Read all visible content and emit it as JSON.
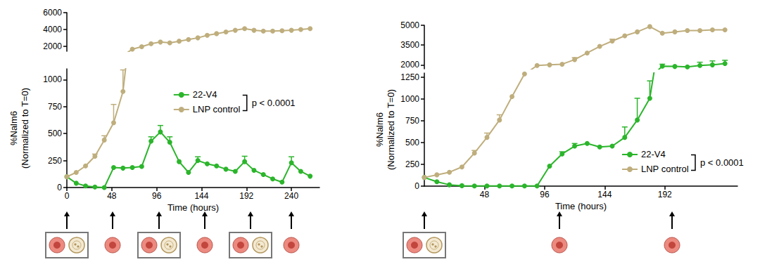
{
  "chart_data": [
    {
      "type": "line",
      "ylabel": "%Nalm6\n(Normalized to T=0)",
      "xlabel": "Time (hours)",
      "annotation": "p < 0.0001",
      "x": [
        0,
        10,
        20,
        30,
        40,
        50,
        60,
        70,
        80,
        90,
        100,
        110,
        120,
        130,
        140,
        150,
        160,
        170,
        180,
        190,
        200,
        210,
        220,
        230,
        240,
        250,
        260
      ],
      "xlim": [
        0,
        270
      ],
      "xticks": [
        0,
        48,
        96,
        144,
        192,
        240
      ],
      "ylim": [
        0,
        6000
      ],
      "yticks": [
        0,
        250,
        500,
        750,
        1000,
        2000,
        4000,
        6000
      ],
      "y_break": [
        1100,
        1400
      ],
      "grid": false,
      "legend": "center",
      "marker": "circle",
      "series": [
        {
          "name": "22-V4",
          "color": "#2bb52b",
          "values": [
            100,
            40,
            15,
            5,
            0,
            185,
            180,
            185,
            195,
            430,
            515,
            420,
            240,
            140,
            250,
            220,
            200,
            170,
            150,
            240,
            160,
            120,
            80,
            50,
            230,
            150,
            105
          ],
          "errors": [
            null,
            null,
            null,
            null,
            null,
            null,
            null,
            null,
            null,
            40,
            60,
            50,
            null,
            null,
            35,
            null,
            null,
            null,
            null,
            50,
            null,
            null,
            null,
            null,
            55,
            null,
            null
          ]
        },
        {
          "name": "LNP control",
          "color": "#bfae7d",
          "values": [
            100,
            140,
            200,
            290,
            440,
            600,
            890,
            1650,
            1950,
            2300,
            2500,
            2400,
            2600,
            2800,
            3000,
            3300,
            3500,
            3700,
            3900,
            4100,
            3900,
            3800,
            3800,
            3850,
            3900,
            4000,
            4100
          ],
          "errors": [
            null,
            null,
            null,
            20,
            40,
            170,
            200,
            null,
            null,
            null,
            null,
            null,
            null,
            null,
            null,
            null,
            null,
            null,
            null,
            null,
            null,
            null,
            null,
            null,
            null,
            null,
            null
          ]
        }
      ]
    },
    {
      "type": "line",
      "ylabel": "%Nalm6\n(Normalized to T=0)",
      "xlabel": "Time (hours)",
      "annotation": "p < 0.0001",
      "x": [
        0,
        10,
        20,
        30,
        40,
        50,
        60,
        70,
        80,
        90,
        100,
        110,
        120,
        130,
        140,
        150,
        160,
        170,
        180,
        190,
        200,
        210,
        220,
        230,
        240
      ],
      "xlim": [
        0,
        250
      ],
      "xticks": [
        48,
        96,
        144,
        192
      ],
      "ylim": [
        0,
        5000
      ],
      "yticks": [
        0,
        250,
        500,
        750,
        1000,
        1250,
        2000,
        3500,
        5000
      ],
      "y_break": [
        1300,
        1700
      ],
      "grid": false,
      "legend": "lower right",
      "marker": "circle",
      "series": [
        {
          "name": "22-V4",
          "color": "#2bb52b",
          "values": [
            100,
            50,
            15,
            5,
            2,
            2,
            2,
            2,
            2,
            2,
            230,
            370,
            460,
            490,
            450,
            460,
            560,
            760,
            1010,
            1900,
            1880,
            1850,
            1950,
            2000,
            2100
          ],
          "errors": [
            null,
            null,
            null,
            null,
            null,
            null,
            null,
            null,
            null,
            null,
            null,
            25,
            30,
            null,
            null,
            null,
            120,
            250,
            200,
            150,
            null,
            null,
            250,
            300,
            250
          ]
        },
        {
          "name": "LNP control",
          "color": "#bfae7d",
          "values": [
            100,
            130,
            160,
            220,
            380,
            560,
            760,
            1030,
            1290,
            1950,
            2000,
            2050,
            2400,
            2900,
            3400,
            3800,
            4200,
            4500,
            4900,
            4400,
            4500,
            4600,
            4600,
            4650,
            4650
          ],
          "errors": [
            null,
            null,
            null,
            null,
            30,
            50,
            60,
            null,
            null,
            null,
            null,
            null,
            150,
            null,
            null,
            150,
            null,
            null,
            null,
            null,
            null,
            null,
            null,
            null,
            null
          ]
        }
      ]
    }
  ]
}
